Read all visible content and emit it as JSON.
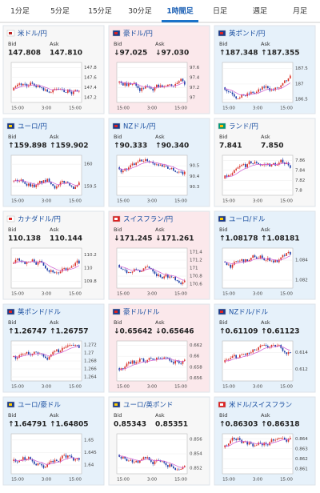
{
  "tabs": [
    "1分足",
    "5分足",
    "15分足",
    "30分足",
    "1時間足",
    "日足",
    "週足",
    "月足"
  ],
  "active_tab": 4,
  "labels": {
    "bid": "Bid",
    "ask": "Ask"
  },
  "tiles": [
    {
      "name": "米ドル/円",
      "flag": "us",
      "bid": "147.808",
      "ask": "147.810",
      "ylim": [
        147.1,
        147.9
      ],
      "yticks": [
        147.8,
        147.6,
        147.4,
        147.2
      ],
      "xticks": [
        "15:00",
        "3:00",
        "15:00"
      ]
    },
    {
      "name": "豪ドル/円",
      "flag": "au",
      "bid": "↓97.025",
      "ask": "↓97.030",
      "ylim": [
        96.9,
        97.7
      ],
      "yticks": [
        97.6,
        97.4,
        97.2,
        97
      ],
      "xticks": [
        "15:00",
        "3:00",
        "15:00"
      ]
    },
    {
      "name": "英ポンド/円",
      "flag": "gb",
      "bid": "↑187.348",
      "ask": "↑187.355",
      "ylim": [
        186.4,
        187.7
      ],
      "yticks": [
        187.5,
        187,
        186.5
      ],
      "xticks": [
        "15:00",
        "3:00",
        "15:00"
      ]
    },
    {
      "name": "ユーロ/円",
      "flag": "eu",
      "bid": "↑159.898",
      "ask": "↑159.902",
      "ylim": [
        159.3,
        160.2
      ],
      "yticks": [
        160,
        159.5
      ],
      "xticks": [
        "15:00",
        "3:00",
        "15:00"
      ]
    },
    {
      "name": "NZドル/円",
      "flag": "nz",
      "bid": "↑90.333",
      "ask": "↑90.340",
      "ylim": [
        90.22,
        90.6
      ],
      "yticks": [
        90.5,
        90.4,
        90.3
      ],
      "xticks": [
        "15:00",
        "3:00",
        "15:00"
      ]
    },
    {
      "name": "ランド/円",
      "flag": "za",
      "bid": "7.841",
      "ask": "7.850",
      "ylim": [
        7.79,
        7.87
      ],
      "yticks": [
        7.86,
        7.84,
        7.82,
        7.8
      ],
      "xticks": [
        "15:00",
        "3:00",
        "15:00"
      ]
    },
    {
      "name": "カナダドル/円",
      "flag": "ca",
      "bid": "110.138",
      "ask": "110.144",
      "ylim": [
        109.7,
        110.3
      ],
      "yticks": [
        110.2,
        110,
        109.8
      ],
      "xticks": [
        "15:00",
        "3:00",
        "15:00"
      ]
    },
    {
      "name": "スイスフラン/円",
      "flag": "ch",
      "bid": "↓171.245",
      "ask": "↓171.261",
      "ylim": [
        170.5,
        171.5
      ],
      "yticks": [
        171.4,
        171.2,
        171,
        170.8,
        170.6
      ],
      "xticks": [
        "15:00",
        "3:00",
        "15:00"
      ]
    },
    {
      "name": "ユーロ/ドル",
      "flag": "eu",
      "bid": "↑1.08178",
      "ask": "↑1.08181",
      "ylim": [
        1.0812,
        1.0852
      ],
      "yticks": [
        1.084,
        1.082
      ],
      "xticks": [
        "15:00",
        "3:00",
        "15:00"
      ]
    },
    {
      "name": "英ポンド/ドル",
      "flag": "gb",
      "bid": "↑1.26747",
      "ask": "↑1.26757",
      "ylim": [
        1.263,
        1.273
      ],
      "yticks": [
        1.272,
        1.27,
        1.268,
        1.266,
        1.264
      ],
      "xticks": [
        "15:00",
        "3:00",
        "15:00"
      ]
    },
    {
      "name": "豪ドル/ドル",
      "flag": "au",
      "bid": "↓0.65642",
      "ask": "↓0.65646",
      "ylim": [
        0.6555,
        0.6628
      ],
      "yticks": [
        0.662,
        0.66,
        0.658,
        0.656
      ],
      "xticks": [
        "15:00",
        "3:00",
        "15:00"
      ]
    },
    {
      "name": "NZドル/ドル",
      "flag": "nz",
      "bid": "↑0.61109",
      "ask": "↑0.61123",
      "ylim": [
        0.6106,
        0.6154
      ],
      "yticks": [
        0.614,
        0.612
      ],
      "xticks": [
        "15:00",
        "3:00",
        "15:00"
      ]
    },
    {
      "name": "ユーロ/豪ドル",
      "flag": "eu",
      "bid": "↑1.64791",
      "ask": "↑1.64805",
      "ylim": [
        1.6365,
        1.6525
      ],
      "yticks": [
        1.65,
        1.645,
        1.64
      ],
      "xticks": [
        "15:00",
        "3:00",
        "15:00"
      ]
    },
    {
      "name": "ユーロ/英ポンド",
      "flag": "eu",
      "bid": "0.85343",
      "ask": "0.85351",
      "ylim": [
        0.8512,
        0.8568
      ],
      "yticks": [
        0.856,
        0.854,
        0.852
      ],
      "xticks": [
        "15:00",
        "3:00",
        "15:00"
      ]
    },
    {
      "name": "米ドル/スイスフラン",
      "flag": "ch",
      "bid": "↑0.86303",
      "ask": "↑0.86318",
      "ylim": [
        0.8605,
        0.8645
      ],
      "yticks": [
        0.864,
        0.863,
        0.862,
        0.861
      ],
      "xticks": [
        "15:00",
        "3:00",
        "15:00"
      ]
    }
  ]
}
